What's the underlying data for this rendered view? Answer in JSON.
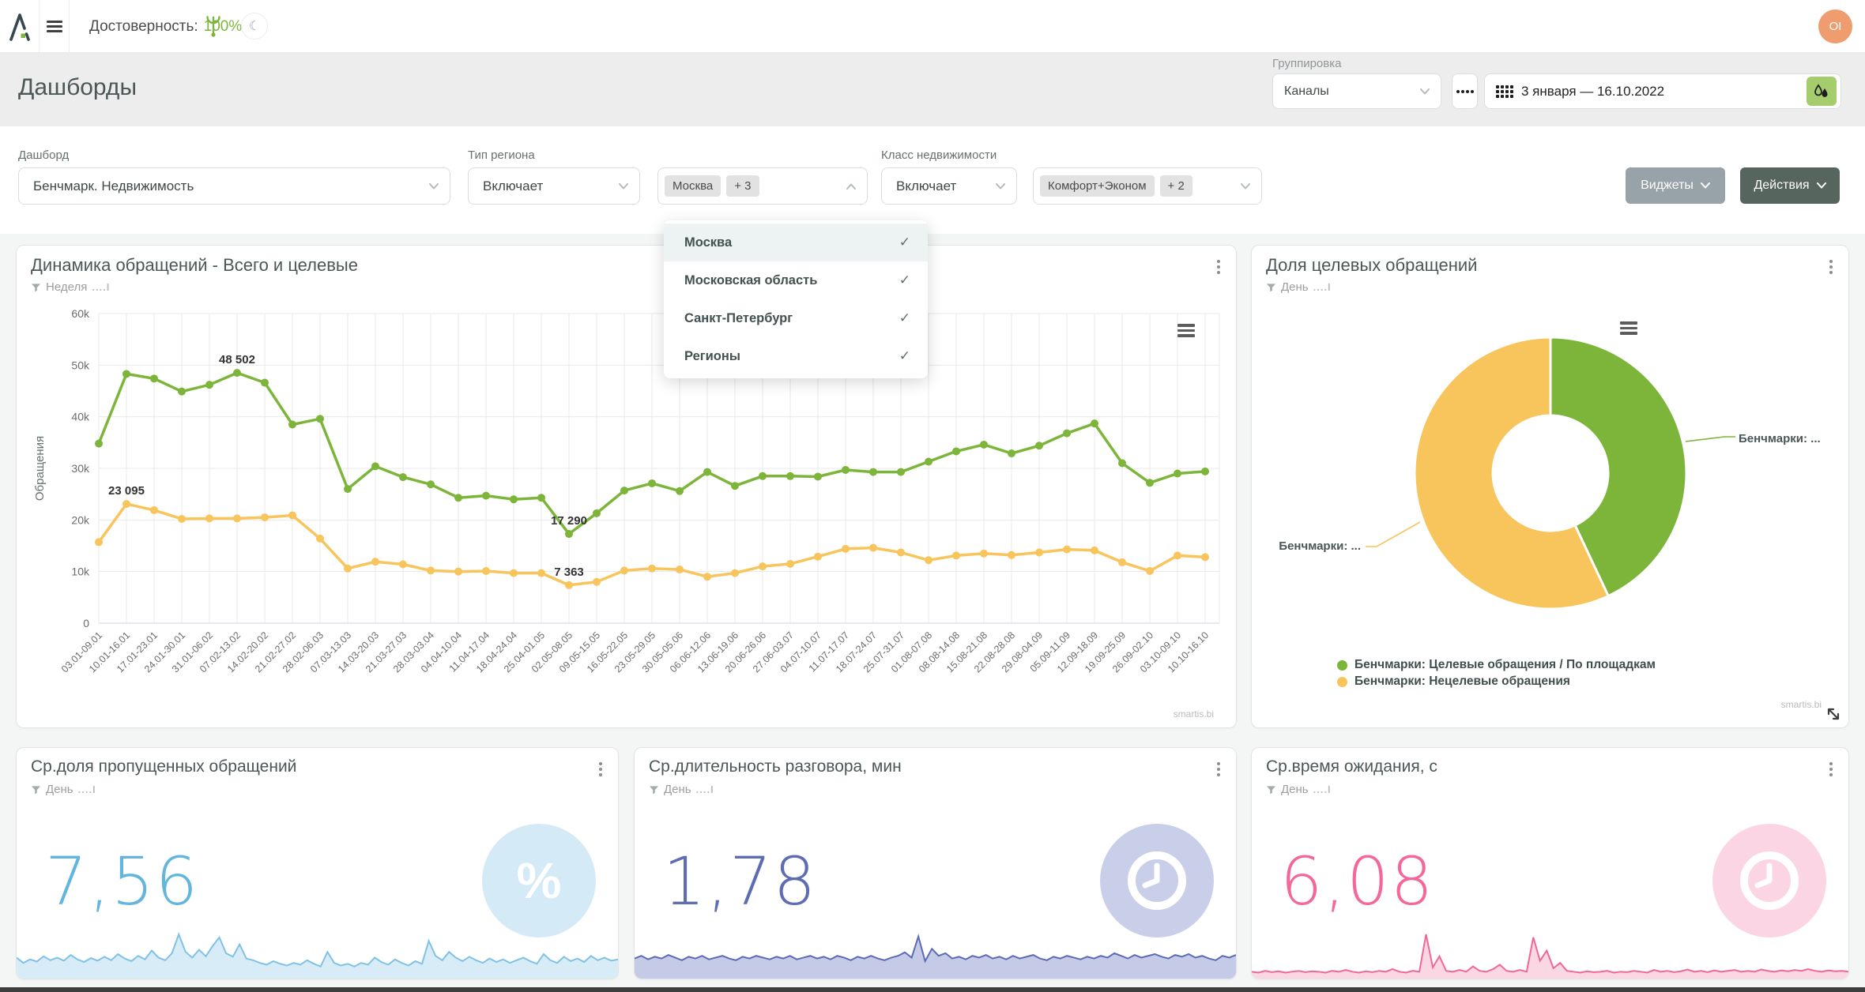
{
  "colors": {
    "green": "#7cb53a",
    "yellow": "#f8c45c",
    "blue": "#64b5dd",
    "blue_line": "#7fc2e5",
    "blue_fill": "#d8ecf8",
    "blue_circle": "#d4eaf6",
    "indigo": "#5e6cb2",
    "indigo_line": "#5c6bb5",
    "indigo_fill": "#c5cbe7",
    "indigo_circle": "#c9cfe9",
    "pink": "#f4679b",
    "pink_line": "#f06894",
    "pink_fill": "#fbd7e3",
    "pink_circle": "#fbd5e3",
    "accent_btn_dark": "#57655f",
    "accent_btn_grey": "#98a2a9",
    "avatar_orange": "#ef9c6e"
  },
  "topbar": {
    "accuracy_label": "Достоверность:",
    "accuracy_value": "100%",
    "avatar": "OI"
  },
  "header": {
    "title": "Дашборды",
    "grouping_label": "Группировка",
    "grouping_value": "Каналы",
    "date_range": "3 января — 16.10.2022"
  },
  "filters": {
    "dashboard_label": "Дашборд",
    "dashboard_value": "Бенчмарк. Недвижимость",
    "region_type_label": "Тип региона",
    "region_type_value": "Включает",
    "region_chip": "Москва",
    "region_more": "+ 3",
    "class_label": "Класс недвижимости",
    "class_value": "Включает",
    "class_chip": "Комфорт+Эконом",
    "class_more": "+ 2",
    "widgets_button": "Виджеты",
    "actions_button": "Действия"
  },
  "region_dropdown": {
    "items": [
      {
        "label": "Москва",
        "checked": true,
        "highlighted": true
      },
      {
        "label": "Московская область",
        "checked": true,
        "highlighted": false
      },
      {
        "label": "Санкт-Петербург",
        "checked": true,
        "highlighted": false
      },
      {
        "label": "Регионы",
        "checked": true,
        "highlighted": false
      }
    ]
  },
  "cards": {
    "dynamics": {
      "title": "Динамика обращений - Всего и целевые",
      "filter": "Неделя",
      "watermark": "smartis.bi"
    },
    "share": {
      "title": "Доля целевых обращений",
      "filter": "День",
      "watermark": "smartis.bi",
      "callout_right": "Бенчмарки: ...",
      "callout_left": "Бенчмарки: ..."
    },
    "missed": {
      "title": "Ср.доля пропущенных обращений",
      "filter": "День",
      "value": "7,56"
    },
    "duration": {
      "title": "Ср.длительность разговора, мин",
      "filter": "День",
      "value": "1,78"
    },
    "waiting": {
      "title": "Ср.время ожидания, с",
      "filter": "День",
      "value": "6,08"
    }
  },
  "chart_data": [
    {
      "id": "dynamics",
      "type": "line",
      "title": "Динамика обращений - Всего и целевые",
      "xlabel": "",
      "ylabel": "Обращения",
      "ylim": [
        0,
        60000
      ],
      "yticks": [
        {
          "v": 0,
          "t": "0"
        },
        {
          "v": 10000,
          "t": "10k"
        },
        {
          "v": 20000,
          "t": "20k"
        },
        {
          "v": 30000,
          "t": "30k"
        },
        {
          "v": 40000,
          "t": "40k"
        },
        {
          "v": 50000,
          "t": "50k"
        },
        {
          "v": 60000,
          "t": "60k"
        }
      ],
      "categories": [
        "03.01-09.01",
        "10.01-16.01",
        "17.01-23.01",
        "24.01-30.01",
        "31.01-06.02",
        "07.02-13.02",
        "14.02-20.02",
        "21.02-27.02",
        "28.02-06.03",
        "07.03-13.03",
        "14.03-20.03",
        "21.03-27.03",
        "28.03-03.04",
        "04.04-10.04",
        "11.04-17.04",
        "18.04-24.04",
        "25.04-01.05",
        "02.05-08.05",
        "09.05-15.05",
        "16.05-22.05",
        "23.05-29.05",
        "30.05-05.06",
        "06.06-12.06",
        "13.06-19.06",
        "20.06-26.06",
        "27.06-03.07",
        "04.07-10.07",
        "11.07-17.07",
        "18.07-24.07",
        "25.07-31.07",
        "01.08-07.08",
        "08.08-14.08",
        "15.08-21.08",
        "22.08-28.08",
        "29.08-04.09",
        "05.09-11.09",
        "12.09-18.09",
        "19.09-25.09",
        "26.09-02.10",
        "03.10-09.10",
        "10.10-16.10"
      ],
      "series": [
        {
          "name": "Всего",
          "color": "#7cb53a",
          "values": [
            34800,
            48300,
            47400,
            44900,
            46200,
            48502,
            46600,
            38500,
            39600,
            26000,
            30400,
            28300,
            26900,
            24300,
            24700,
            24000,
            24300,
            17290,
            21300,
            25700,
            27100,
            25600,
            29300,
            26600,
            28500,
            28500,
            28400,
            29700,
            29300,
            29300,
            31300,
            33300,
            34600,
            32900,
            34400,
            36800,
            38700,
            31000,
            27200,
            29000,
            29400
          ]
        },
        {
          "name": "Целевые",
          "color": "#f8c45c",
          "values": [
            15700,
            23095,
            21900,
            20200,
            20300,
            20300,
            20500,
            20900,
            16400,
            10600,
            11900,
            11400,
            10200,
            10000,
            10100,
            9700,
            9700,
            7363,
            8000,
            10200,
            10600,
            10400,
            9000,
            9700,
            11000,
            11500,
            12900,
            14400,
            14600,
            13700,
            12200,
            13100,
            13500,
            13200,
            13700,
            14300,
            14100,
            11800,
            10100,
            13100,
            12800
          ]
        }
      ],
      "point_labels": [
        {
          "series": 0,
          "index": 5,
          "text": "48 502"
        },
        {
          "series": 0,
          "index": 17,
          "text": "17 290"
        },
        {
          "series": 1,
          "index": 1,
          "text": "23 095"
        },
        {
          "series": 1,
          "index": 17,
          "text": "7 363"
        }
      ],
      "grid": true,
      "legend": "none"
    },
    {
      "id": "share",
      "type": "pie",
      "donut": true,
      "title": "Доля целевых обращений",
      "legend_position": "bottom",
      "slices": [
        {
          "name": "Бенчмарки: Целевые обращения / По площадкам",
          "value": 43,
          "color": "#7cb53a"
        },
        {
          "name": "Бенчмарки: Нецелевые обращения",
          "value": 57,
          "color": "#f8c45c"
        }
      ]
    },
    {
      "id": "missed",
      "type": "area",
      "title": "Ср.доля пропущенных обращений",
      "line_color": "#7fc2e5",
      "fill_color": "#d8ecf8",
      "values": [
        0.42,
        0.3,
        0.38,
        0.33,
        0.45,
        0.36,
        0.42,
        0.35,
        0.48,
        0.38,
        0.32,
        0.41,
        0.35,
        0.44,
        0.36,
        0.5,
        0.4,
        0.34,
        0.46,
        0.38,
        0.58,
        0.42,
        0.36,
        0.52,
        0.95,
        0.55,
        0.42,
        0.6,
        0.45,
        0.68,
        0.88,
        0.52,
        0.44,
        0.72,
        0.4,
        0.36,
        0.3,
        0.26,
        0.34,
        0.28,
        0.24,
        0.3,
        0.26,
        0.36,
        0.28,
        0.22,
        0.55,
        0.3,
        0.24,
        0.28,
        0.22,
        0.3,
        0.26,
        0.42,
        0.32,
        0.26,
        0.38,
        0.3,
        0.24,
        0.34,
        0.28,
        0.8,
        0.46,
        0.36,
        0.55,
        0.42,
        0.34,
        0.44,
        0.36,
        0.3,
        0.4,
        0.32,
        0.38,
        0.3,
        0.36,
        0.42,
        0.34,
        0.28,
        0.5,
        0.36,
        0.3,
        0.44,
        0.34,
        0.4,
        0.32,
        0.46,
        0.36,
        0.42,
        0.35,
        0.38
      ]
    },
    {
      "id": "duration",
      "type": "area",
      "title": "Ср.длительность разговора, мин",
      "line_color": "#5c6bb5",
      "fill_color": "#c5cbe7",
      "values": [
        0.4,
        0.46,
        0.38,
        0.44,
        0.4,
        0.48,
        0.42,
        0.36,
        0.44,
        0.4,
        0.46,
        0.38,
        0.42,
        0.46,
        0.4,
        0.36,
        0.44,
        0.4,
        0.46,
        0.42,
        0.38,
        0.44,
        0.4,
        0.46,
        0.38,
        0.42,
        0.46,
        0.4,
        0.44,
        0.38,
        0.46,
        0.42,
        0.36,
        0.44,
        0.4,
        0.46,
        0.4,
        0.36,
        0.42,
        0.46,
        0.54,
        0.42,
        0.9,
        0.34,
        0.62,
        0.46,
        0.52,
        0.4,
        0.44,
        0.38,
        0.46,
        0.42,
        0.48,
        0.4,
        0.44,
        0.38,
        0.46,
        0.4,
        0.44,
        0.48,
        0.4,
        0.36,
        0.44,
        0.4,
        0.46,
        0.42,
        0.38,
        0.44,
        0.4,
        0.46,
        0.42,
        0.52,
        0.46,
        0.4,
        0.48,
        0.42,
        0.46,
        0.5,
        0.44,
        0.4,
        0.48,
        0.44,
        0.5,
        0.42,
        0.46,
        0.4,
        0.36,
        0.46,
        0.42,
        0.48
      ]
    },
    {
      "id": "waiting",
      "type": "area",
      "title": "Ср.время ожидания, с",
      "line_color": "#f06894",
      "fill_color": "#fbd7e3",
      "values": [
        0.1,
        0.08,
        0.12,
        0.09,
        0.11,
        0.08,
        0.1,
        0.12,
        0.09,
        0.11,
        0.1,
        0.08,
        0.12,
        0.1,
        0.14,
        0.1,
        0.08,
        0.11,
        0.09,
        0.12,
        0.1,
        0.16,
        0.1,
        0.08,
        0.12,
        0.1,
        0.95,
        0.2,
        0.45,
        0.12,
        0.1,
        0.14,
        0.1,
        0.22,
        0.12,
        0.1,
        0.16,
        0.26,
        0.12,
        0.1,
        0.14,
        0.1,
        0.88,
        0.35,
        0.58,
        0.18,
        0.3,
        0.12,
        0.1,
        0.08,
        0.11,
        0.09,
        0.1,
        0.12,
        0.08,
        0.1,
        0.09,
        0.12,
        0.1,
        0.08,
        0.14,
        0.1,
        0.12,
        0.09,
        0.11,
        0.15,
        0.1,
        0.12,
        0.09,
        0.13,
        0.1,
        0.12,
        0.14,
        0.1,
        0.12,
        0.1,
        0.15,
        0.12,
        0.1,
        0.13,
        0.11,
        0.14,
        0.12,
        0.16,
        0.12,
        0.1,
        0.13,
        0.11,
        0.12,
        0.1
      ]
    }
  ]
}
